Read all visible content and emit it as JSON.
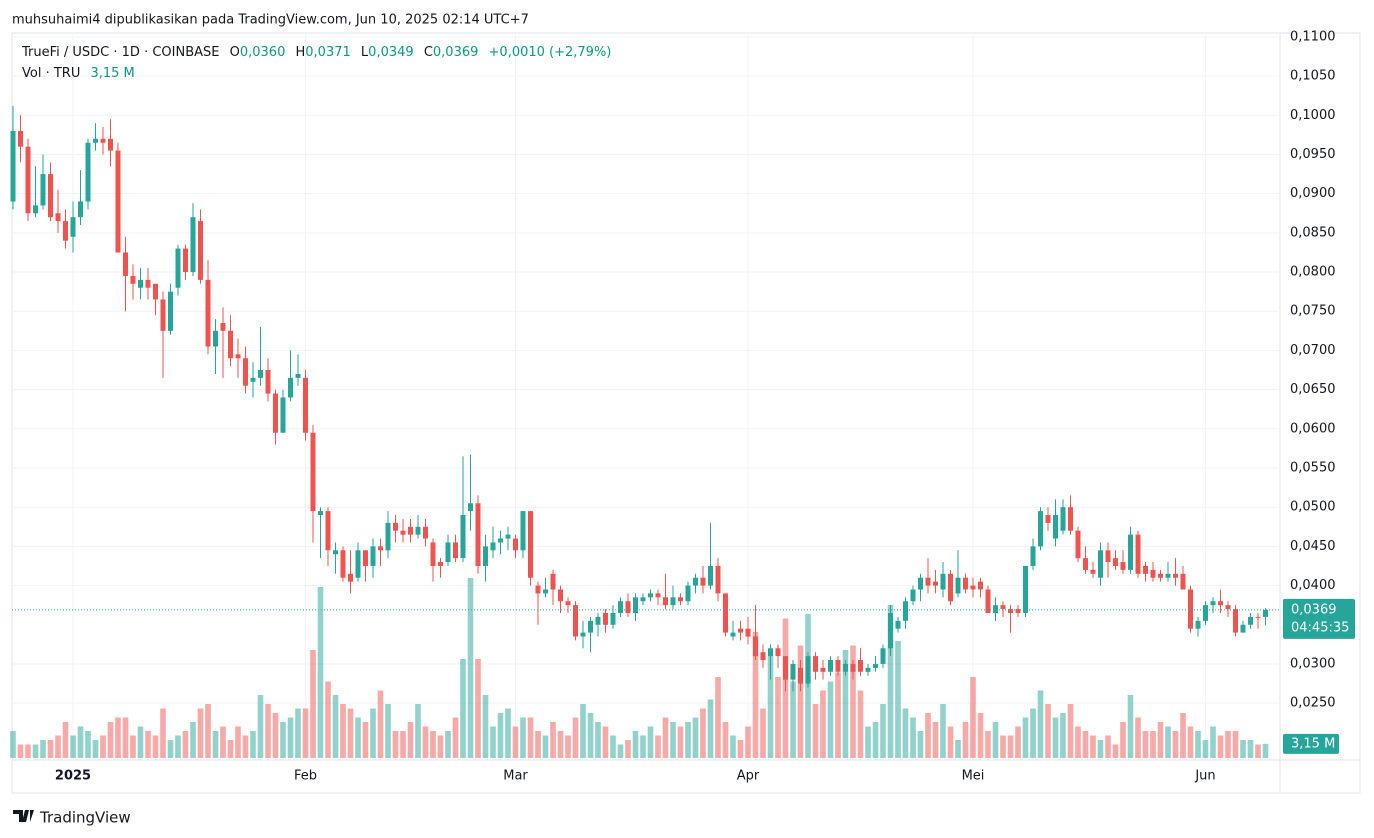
{
  "header": "muhsuhaimi4 dipublikasikan pada TradingView.com, Jun 10, 2025 02:14 UTC+7",
  "footer": "TradingView",
  "chart_data": {
    "type": "candlestick",
    "title": "TrueFi / USDC · 1D · COINBASE",
    "ohlc_keys": [
      "O",
      "H",
      "L",
      "C"
    ],
    "ohlc_labels": [
      "0,0360",
      "0,0371",
      "0,0349",
      "0,0369"
    ],
    "change_label": "+0,0010 (+2,79%)",
    "volume_title": "Vol · TRU",
    "volume_label": "3,15 M",
    "countdown": "04:45:35",
    "up_color": "#26a69a",
    "down_color": "#ef5350",
    "grid": true,
    "ylim": [
      0.018,
      0.1105
    ],
    "yticks": [
      {
        "value": 0.11,
        "label": "0,1100"
      },
      {
        "value": 0.105,
        "label": "0,1050"
      },
      {
        "value": 0.1,
        "label": "0,1000"
      },
      {
        "value": 0.095,
        "label": "0,0950"
      },
      {
        "value": 0.09,
        "label": "0,0900"
      },
      {
        "value": 0.085,
        "label": "0,0850"
      },
      {
        "value": 0.08,
        "label": "0,0800"
      },
      {
        "value": 0.075,
        "label": "0,0750"
      },
      {
        "value": 0.07,
        "label": "0,0700"
      },
      {
        "value": 0.065,
        "label": "0,0650"
      },
      {
        "value": 0.06,
        "label": "0,0600"
      },
      {
        "value": 0.055,
        "label": "0,0550"
      },
      {
        "value": 0.05,
        "label": "0,0500"
      },
      {
        "value": 0.045,
        "label": "0,0450"
      },
      {
        "value": 0.04,
        "label": "0,0400"
      },
      {
        "value": 0.03,
        "label": "0,0300"
      },
      {
        "value": 0.025,
        "label": "0,0250"
      }
    ],
    "categories": [
      null,
      null,
      null,
      null,
      null,
      null,
      null,
      null,
      "2025",
      null,
      null,
      null,
      null,
      null,
      null,
      null,
      null,
      null,
      null,
      null,
      null,
      null,
      null,
      null,
      null,
      null,
      null,
      null,
      null,
      null,
      null,
      null,
      null,
      null,
      null,
      null,
      null,
      null,
      null,
      "Feb",
      null,
      null,
      null,
      null,
      null,
      null,
      null,
      null,
      null,
      null,
      null,
      null,
      null,
      null,
      null,
      null,
      null,
      null,
      null,
      null,
      null,
      null,
      null,
      null,
      null,
      null,
      null,
      "Mar",
      null,
      null,
      null,
      null,
      null,
      null,
      null,
      null,
      null,
      null,
      null,
      null,
      null,
      null,
      null,
      null,
      null,
      null,
      null,
      null,
      null,
      null,
      null,
      null,
      null,
      null,
      null,
      null,
      null,
      null,
      "Apr",
      null,
      null,
      null,
      null,
      null,
      null,
      null,
      null,
      null,
      null,
      null,
      null,
      null,
      null,
      null,
      null,
      null,
      null,
      null,
      null,
      null,
      null,
      null,
      null,
      null,
      null,
      null,
      null,
      null,
      "Mei",
      null,
      null,
      null,
      null,
      null,
      null,
      null,
      null,
      null,
      null,
      null,
      null,
      null,
      null,
      null,
      null,
      null,
      null,
      null,
      null,
      null,
      null,
      null,
      null,
      null,
      null,
      null,
      null,
      null,
      null,
      "Jun",
      null,
      null,
      null,
      null,
      null,
      null,
      null,
      null
    ],
    "open": [
      0.089,
      0.098,
      0.096,
      0.0875,
      0.0885,
      0.0925,
      0.0875,
      0.0865,
      0.0845,
      0.087,
      0.089,
      0.0965,
      0.097,
      0.097,
      0.0955,
      0.0825,
      0.0795,
      0.078,
      0.079,
      0.0785,
      0.0765,
      0.0725,
      0.078,
      0.083,
      0.08,
      0.0865,
      0.079,
      0.0705,
      0.0735,
      0.0725,
      0.0695,
      0.069,
      0.066,
      0.0665,
      0.0675,
      0.0645,
      0.0595,
      0.064,
      0.0665,
      0.0665,
      0.0595,
      0.049,
      0.0495,
      0.044,
      0.0445,
      0.0415,
      0.041,
      0.0445,
      0.0425,
      0.045,
      0.0445,
      0.048,
      0.047,
      0.0475,
      0.0465,
      0.0475,
      0.0455,
      0.043,
      0.043,
      0.0455,
      0.0435,
      0.0495,
      0.0505,
      0.0425,
      0.0445,
      0.0455,
      0.046,
      0.046,
      0.0445,
      0.0495,
      0.04,
      0.039,
      0.0415,
      0.0395,
      0.038,
      0.0375,
      0.0335,
      0.034,
      0.035,
      0.0365,
      0.035,
      0.0365,
      0.038,
      0.0365,
      0.038,
      0.0385,
      0.039,
      0.0385,
      0.0375,
      0.0385,
      0.038,
      0.04,
      0.041,
      0.04,
      0.0425,
      0.039,
      0.0335,
      0.0345,
      0.0345,
      0.0335,
      0.0315,
      0.031,
      0.032,
      0.031,
      0.028,
      0.0295,
      0.0275,
      0.031,
      0.0295,
      0.029,
      0.0305,
      0.029,
      0.03,
      0.0305,
      0.029,
      0.0295,
      0.03,
      0.032,
      0.0345,
      0.0355,
      0.038,
      0.0395,
      0.041,
      0.0405,
      0.0395,
      0.0415,
      0.039,
      0.041,
      0.04,
      0.0405,
      0.0395,
      0.0365,
      0.0375,
      0.037,
      0.037,
      0.0365,
      0.0425,
      0.045,
      0.049,
      0.046,
      0.047,
      0.05,
      0.047,
      0.0435,
      0.042,
      0.041,
      0.0445,
      0.0435,
      0.043,
      0.042,
      0.0465,
      0.0425,
      0.042,
      0.0415,
      0.041,
      0.0415,
      0.0415,
      0.0395,
      0.0345,
      0.0355,
      0.0375,
      0.038,
      0.0375,
      0.037,
      0.034,
      0.035,
      0.036,
      0.036
    ],
    "high": [
      0.1012,
      0.1,
      0.097,
      0.0935,
      0.095,
      0.094,
      0.0905,
      0.088,
      0.089,
      0.093,
      0.097,
      0.099,
      0.0985,
      0.0995,
      0.0965,
      0.0845,
      0.081,
      0.0805,
      0.0805,
      0.0785,
      0.0775,
      0.0785,
      0.0835,
      0.0835,
      0.0888,
      0.088,
      0.0815,
      0.074,
      0.0755,
      0.0745,
      0.0715,
      0.0705,
      0.0685,
      0.073,
      0.069,
      0.065,
      0.065,
      0.07,
      0.0695,
      0.0675,
      0.0605,
      0.05,
      0.05,
      0.0455,
      0.045,
      0.0445,
      0.0455,
      0.0445,
      0.046,
      0.046,
      0.0495,
      0.049,
      0.0485,
      0.0485,
      0.049,
      0.0485,
      0.046,
      0.0435,
      0.0465,
      0.0465,
      0.0565,
      0.0567,
      0.0515,
      0.0465,
      0.0475,
      0.047,
      0.0475,
      0.0465,
      0.0495,
      0.0495,
      0.0405,
      0.041,
      0.042,
      0.04,
      0.0385,
      0.038,
      0.0355,
      0.036,
      0.0365,
      0.037,
      0.0375,
      0.0385,
      0.039,
      0.039,
      0.039,
      0.0395,
      0.0395,
      0.0415,
      0.04,
      0.039,
      0.0405,
      0.0415,
      0.0425,
      0.048,
      0.0435,
      0.039,
      0.0355,
      0.0355,
      0.036,
      0.0375,
      0.0325,
      0.0325,
      0.0325,
      0.031,
      0.0305,
      0.0305,
      0.0315,
      0.0315,
      0.0305,
      0.031,
      0.031,
      0.0305,
      0.0305,
      0.032,
      0.03,
      0.031,
      0.0325,
      0.0375,
      0.036,
      0.0385,
      0.04,
      0.0415,
      0.0435,
      0.042,
      0.043,
      0.042,
      0.0445,
      0.0415,
      0.041,
      0.041,
      0.04,
      0.0385,
      0.038,
      0.0375,
      0.0375,
      0.0425,
      0.046,
      0.05,
      0.05,
      0.051,
      0.051,
      0.0515,
      0.0475,
      0.045,
      0.043,
      0.0455,
      0.0455,
      0.0445,
      0.0445,
      0.0475,
      0.047,
      0.043,
      0.043,
      0.042,
      0.043,
      0.0435,
      0.0425,
      0.04,
      0.036,
      0.038,
      0.0385,
      0.0395,
      0.038,
      0.0375,
      0.0355,
      0.0365,
      0.0365,
      0.0371
    ],
    "low": [
      0.088,
      0.094,
      0.0865,
      0.087,
      0.088,
      0.0865,
      0.085,
      0.083,
      0.0825,
      0.086,
      0.088,
      0.0955,
      0.095,
      0.0935,
      0.0825,
      0.075,
      0.0765,
      0.0765,
      0.0765,
      0.0745,
      0.0665,
      0.072,
      0.077,
      0.079,
      0.0795,
      0.0785,
      0.0695,
      0.067,
      0.0665,
      0.068,
      0.0665,
      0.0645,
      0.064,
      0.0655,
      0.0635,
      0.058,
      0.0595,
      0.0635,
      0.0655,
      0.0585,
      0.0455,
      0.0435,
      0.0425,
      0.0415,
      0.0405,
      0.039,
      0.0405,
      0.0405,
      0.041,
      0.0425,
      0.0435,
      0.0455,
      0.0455,
      0.0455,
      0.046,
      0.045,
      0.0405,
      0.041,
      0.0425,
      0.043,
      0.043,
      0.047,
      0.0415,
      0.0405,
      0.0435,
      0.044,
      0.0445,
      0.0435,
      0.0435,
      0.04,
      0.035,
      0.0385,
      0.0375,
      0.0365,
      0.0365,
      0.033,
      0.032,
      0.0315,
      0.0335,
      0.034,
      0.0345,
      0.036,
      0.036,
      0.0355,
      0.0375,
      0.038,
      0.0375,
      0.037,
      0.037,
      0.0375,
      0.0375,
      0.039,
      0.039,
      0.0395,
      0.038,
      0.0335,
      0.033,
      0.033,
      0.0325,
      0.0305,
      0.0295,
      0.028,
      0.0295,
      0.0265,
      0.0265,
      0.0265,
      0.027,
      0.028,
      0.028,
      0.0285,
      0.0285,
      0.0285,
      0.028,
      0.0285,
      0.0285,
      0.029,
      0.0295,
      0.031,
      0.034,
      0.0345,
      0.0375,
      0.038,
      0.039,
      0.039,
      0.0385,
      0.0375,
      0.0385,
      0.039,
      0.0385,
      0.0385,
      0.0365,
      0.0355,
      0.036,
      0.034,
      0.036,
      0.036,
      0.042,
      0.0445,
      0.047,
      0.045,
      0.0465,
      0.0465,
      0.043,
      0.0415,
      0.041,
      0.04,
      0.041,
      0.042,
      0.0415,
      0.0415,
      0.041,
      0.0405,
      0.0405,
      0.0405,
      0.0405,
      0.04,
      0.0395,
      0.034,
      0.0335,
      0.035,
      0.0365,
      0.0365,
      0.036,
      0.0335,
      0.034,
      0.0345,
      0.0345,
      0.0349
    ],
    "close": [
      0.098,
      0.096,
      0.0875,
      0.0885,
      0.0925,
      0.087,
      0.0865,
      0.084,
      0.087,
      0.089,
      0.0965,
      0.097,
      0.0965,
      0.0955,
      0.0825,
      0.0795,
      0.0785,
      0.079,
      0.078,
      0.0765,
      0.0725,
      0.0775,
      0.083,
      0.08,
      0.087,
      0.079,
      0.0705,
      0.0725,
      0.0725,
      0.069,
      0.069,
      0.0655,
      0.0665,
      0.0675,
      0.0645,
      0.0595,
      0.064,
      0.0665,
      0.067,
      0.0595,
      0.0495,
      0.0495,
      0.0445,
      0.0445,
      0.041,
      0.0405,
      0.0445,
      0.0425,
      0.045,
      0.0445,
      0.048,
      0.047,
      0.0465,
      0.0465,
      0.0475,
      0.046,
      0.0425,
      0.0425,
      0.0455,
      0.0435,
      0.049,
      0.0505,
      0.0425,
      0.045,
      0.0455,
      0.046,
      0.0465,
      0.0445,
      0.0495,
      0.041,
      0.039,
      0.0395,
      0.0395,
      0.038,
      0.0375,
      0.0335,
      0.034,
      0.0355,
      0.036,
      0.035,
      0.0365,
      0.038,
      0.0365,
      0.0385,
      0.0385,
      0.039,
      0.0385,
      0.0375,
      0.0385,
      0.038,
      0.04,
      0.041,
      0.04,
      0.0425,
      0.039,
      0.034,
      0.034,
      0.034,
      0.0335,
      0.031,
      0.0305,
      0.032,
      0.031,
      0.028,
      0.03,
      0.0275,
      0.031,
      0.029,
      0.029,
      0.0305,
      0.029,
      0.03,
      0.029,
      0.029,
      0.0295,
      0.03,
      0.032,
      0.0365,
      0.0355,
      0.038,
      0.0395,
      0.041,
      0.04,
      0.04,
      0.0415,
      0.038,
      0.041,
      0.0395,
      0.0395,
      0.0395,
      0.0365,
      0.0375,
      0.037,
      0.0365,
      0.0365,
      0.0425,
      0.045,
      0.0495,
      0.048,
      0.049,
      0.05,
      0.047,
      0.0435,
      0.042,
      0.0415,
      0.0445,
      0.043,
      0.0425,
      0.042,
      0.0465,
      0.0415,
      0.0415,
      0.041,
      0.041,
      0.0415,
      0.041,
      0.0395,
      0.0345,
      0.0355,
      0.0375,
      0.038,
      0.0375,
      0.037,
      0.034,
      0.035,
      0.036,
      0.0359,
      0.0369
    ],
    "volume": [
      6,
      3,
      3,
      3,
      4,
      4,
      5,
      8,
      5,
      7,
      6,
      4,
      5,
      8,
      9,
      9,
      5,
      7,
      6,
      5,
      11,
      4,
      5,
      6,
      8,
      11,
      12,
      6,
      7,
      4,
      7,
      5,
      6,
      14,
      12,
      10,
      8,
      9,
      11,
      11,
      24,
      38,
      17,
      14,
      12,
      11,
      9,
      8,
      11,
      15,
      12,
      6,
      6,
      8,
      12,
      7,
      6,
      5,
      6,
      9,
      22,
      40,
      22,
      14,
      7,
      10,
      11,
      7,
      9,
      9,
      6,
      5,
      8,
      6,
      5,
      9,
      12,
      10,
      8,
      7,
      5,
      3,
      4,
      6,
      5,
      7,
      5,
      9,
      8,
      7,
      8,
      9,
      11,
      13,
      18,
      8,
      5,
      4,
      7,
      28,
      11,
      23,
      18,
      31,
      17,
      25,
      32,
      12,
      15,
      17,
      19,
      24,
      25,
      15,
      7,
      8,
      12,
      34,
      26,
      11,
      9,
      6,
      10,
      8,
      12,
      7,
      4,
      8,
      18,
      10,
      6,
      8,
      5,
      5,
      7,
      9,
      11,
      15,
      12,
      9,
      10,
      12,
      7,
      6,
      5,
      4,
      5,
      3,
      8,
      14,
      9,
      6,
      6,
      8,
      7,
      6,
      10,
      7,
      6,
      4,
      7,
      5,
      6,
      6,
      4,
      4,
      3,
      3.15
    ]
  }
}
